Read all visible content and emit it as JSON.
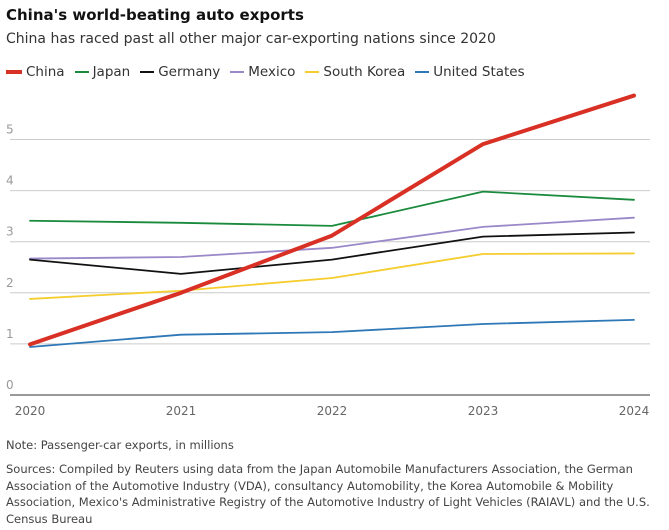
{
  "chart_data": {
    "type": "line",
    "title": "China's world-beating auto exports",
    "subtitle": "China has raced past all other major car-exporting nations since 2020",
    "x": [
      "2020",
      "2021",
      "2022",
      "2023",
      "2024"
    ],
    "yticks": [
      "0",
      "1",
      "2",
      "3",
      "4",
      "5"
    ],
    "ylim": [
      0,
      6
    ],
    "grid": true,
    "legend": "top-left",
    "series": [
      {
        "name": "China",
        "color": "#d93025",
        "width": 4,
        "values": [
          0.99,
          2.0,
          3.12,
          4.91,
          5.86
        ]
      },
      {
        "name": "Japan",
        "color": "#1a8a3c",
        "width": 1.8,
        "values": [
          3.41,
          3.37,
          3.31,
          3.98,
          3.82
        ]
      },
      {
        "name": "Germany",
        "color": "#111111",
        "width": 1.8,
        "values": [
          2.65,
          2.37,
          2.65,
          3.1,
          3.18
        ]
      },
      {
        "name": "Mexico",
        "color": "#9b88c8",
        "width": 1.8,
        "values": [
          2.67,
          2.7,
          2.88,
          3.29,
          3.47
        ]
      },
      {
        "name": "South Korea",
        "color": "#f5cd2e",
        "width": 1.8,
        "values": [
          1.88,
          2.04,
          2.29,
          2.76,
          2.77
        ]
      },
      {
        "name": "United States",
        "color": "#2e78b7",
        "width": 1.8,
        "values": [
          0.94,
          1.18,
          1.23,
          1.39,
          1.47
        ]
      }
    ]
  },
  "note": "Note: Passenger-car exports, in millions",
  "sources": "Sources: Compiled by Reuters using data from the Japan Automobile Manufacturers Association, the German Association of the Automotive Industry (VDA), consultancy Automobility, the Korea Automobile & Mobility Association, Mexico's Administrative Registry of the Automotive Industry of Light Vehicles (RAIAVL) and the U.S. Census Bureau"
}
